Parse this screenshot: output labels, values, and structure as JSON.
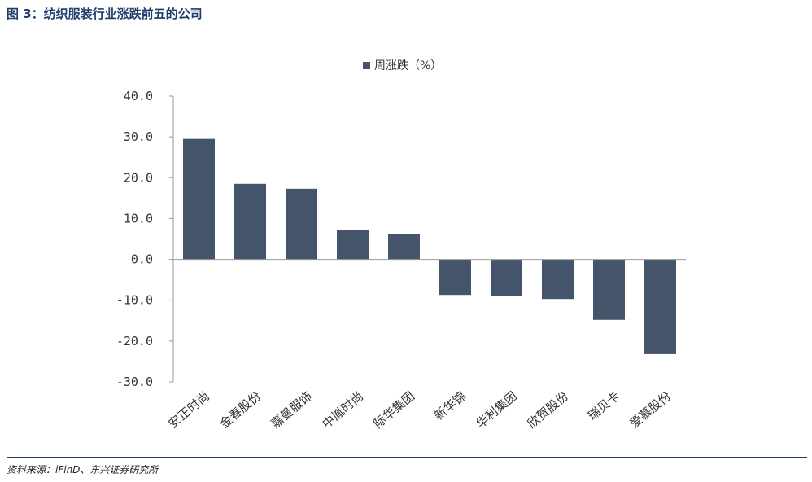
{
  "page": {
    "title": "图 3：纺织服装行业涨跌前五的公司",
    "source": "资料来源：iFinD、东兴证券研究所"
  },
  "colors": {
    "bar": "#44546a",
    "rule": "#1f3d6b",
    "axis": "#999999"
  },
  "chart_data": {
    "type": "bar",
    "categories": [
      "安正时尚",
      "金春股份",
      "嘉曼服饰",
      "中胤时尚",
      "际华集团",
      "新华锦",
      "华利集团",
      "欣贺股份",
      "瑞贝卡",
      "爱慕股份"
    ],
    "series": [
      {
        "name": "周涨跌（%）",
        "values": [
          29.5,
          18.5,
          17.3,
          7.2,
          6.2,
          -8.7,
          -9.0,
          -9.7,
          -14.8,
          -23.2
        ]
      }
    ],
    "ylim": [
      -30,
      40
    ],
    "yticks": [
      40,
      30,
      20,
      10,
      0,
      -10,
      -20,
      -30
    ],
    "ytick_labels": [
      "40.0",
      "30.0",
      "20.0",
      "10.0",
      "0.0",
      "-10.0",
      "-20.0",
      "-30.0"
    ],
    "legend_position": "top-center",
    "grid": false
  }
}
